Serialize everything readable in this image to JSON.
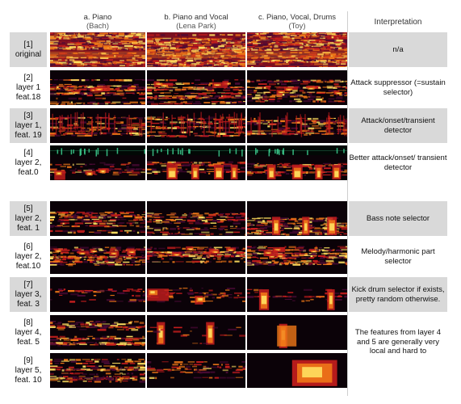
{
  "columns": [
    {
      "title": "a. Piano",
      "subtitle": "(Bach)"
    },
    {
      "title": "b. Piano and Vocal",
      "subtitle": "(Lena Park)"
    },
    {
      "title": "c. Piano, Vocal, Drums",
      "subtitle": "(Toy)"
    }
  ],
  "interp_header": "Interpretation",
  "rows": [
    {
      "idx": "[1]",
      "line2": "original",
      "line3": "",
      "interp": "n/a",
      "style": "orig"
    },
    {
      "idx": "[2]",
      "line2": "layer 1",
      "line3": "feat.18",
      "interp": "Attack suppressor (=sustain selector)",
      "style": "sustain"
    },
    {
      "idx": "[3]",
      "line2": "layer 1,",
      "line3": "feat. 19",
      "interp": "Attack/onset/transient detector",
      "style": "attack"
    },
    {
      "idx": "[4]",
      "line2": "layer 2,",
      "line3": "feat.0",
      "interp": "Better attack/onset/ transient detector",
      "style": "better"
    },
    {
      "idx": "[5]",
      "line2": "layer 2,",
      "line3": "feat. 1",
      "interp": "Bass note selector",
      "style": "bass"
    },
    {
      "idx": "[6]",
      "line2": "layer 2,",
      "line3": "feat.10",
      "interp": "Melody/harmonic part selector",
      "style": "melody"
    },
    {
      "idx": "[7]",
      "line2": "layer 3,",
      "line3": "feat. 3",
      "interp": "Kick drum selector if exists, pretty random otherwise.",
      "style": "kick"
    },
    {
      "idx": "[8]",
      "line2": "layer 4,",
      "line3": "feat. 5",
      "interp": "The features from layer 4 and 5 are generally very local and hard to",
      "style": "local"
    },
    {
      "idx": "[9]",
      "line2": "layer 5,",
      "line3": "feat. 10",
      "interp": "",
      "style": "local2"
    }
  ],
  "colors": {
    "dark": "#0b0208",
    "purple": "#4a0a35",
    "red": "#c81e1e",
    "orange": "#f07818",
    "yellow": "#ffe060",
    "green": "#3cc88c"
  }
}
